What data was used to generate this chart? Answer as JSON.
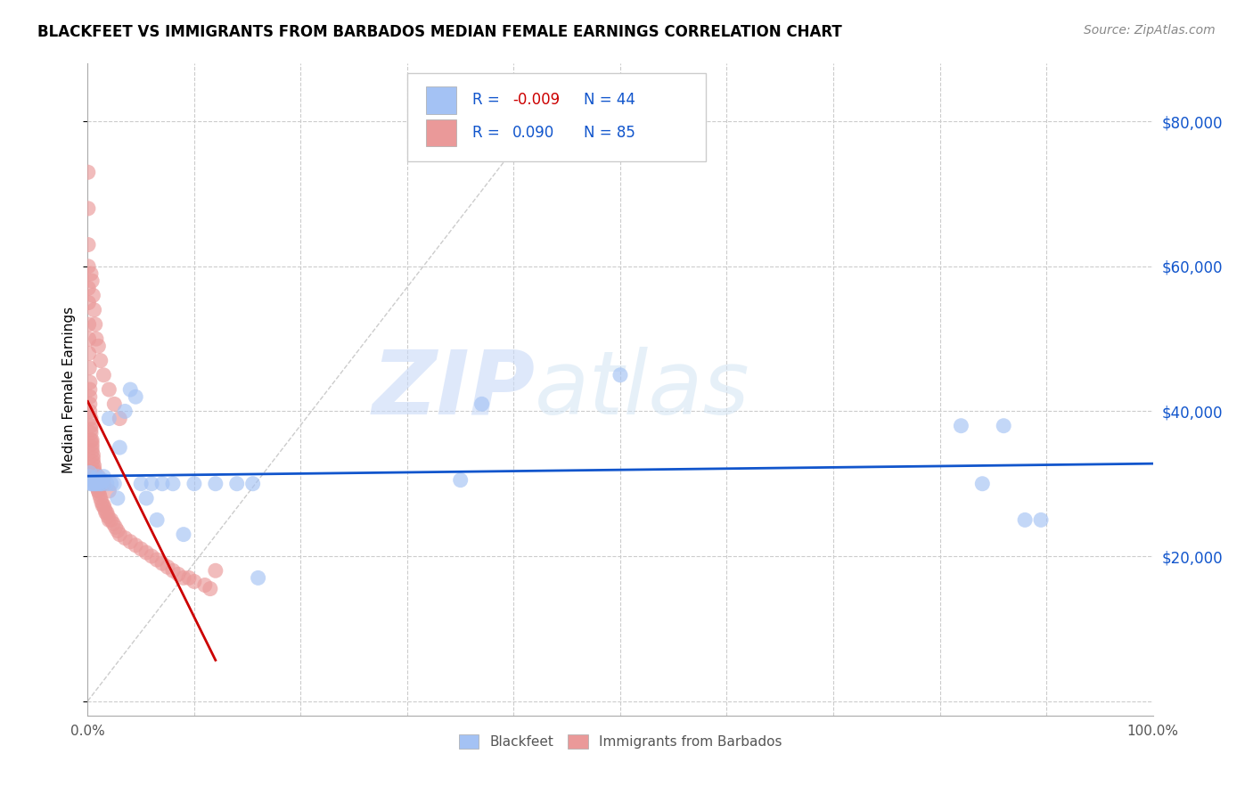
{
  "title": "BLACKFEET VS IMMIGRANTS FROM BARBADOS MEDIAN FEMALE EARNINGS CORRELATION CHART",
  "source": "Source: ZipAtlas.com",
  "ylabel": "Median Female Earnings",
  "watermark": "ZIPatlas",
  "blue_color": "#a4c2f4",
  "pink_color": "#ea9999",
  "blue_line_color": "#1155cc",
  "pink_line_color": "#cc0000",
  "diag_line_color": "#cccccc",
  "ylim": [
    -2000,
    88000
  ],
  "xlim": [
    0,
    1.0
  ],
  "yticks": [
    0,
    20000,
    40000,
    60000,
    80000
  ],
  "ytick_labels": [
    "",
    "$20,000",
    "$40,000",
    "$60,000",
    "$80,000"
  ],
  "blue_scatter_x": [
    0.001,
    0.002,
    0.003,
    0.004,
    0.005,
    0.006,
    0.007,
    0.008,
    0.009,
    0.01,
    0.011,
    0.012,
    0.013,
    0.014,
    0.015,
    0.018,
    0.02,
    0.022,
    0.025,
    0.028,
    0.03,
    0.035,
    0.04,
    0.045,
    0.05,
    0.055,
    0.06,
    0.065,
    0.07,
    0.08,
    0.09,
    0.1,
    0.12,
    0.14,
    0.155,
    0.16,
    0.35,
    0.37,
    0.5,
    0.82,
    0.84,
    0.86,
    0.88,
    0.895
  ],
  "blue_scatter_y": [
    31000,
    31500,
    30000,
    30000,
    30000,
    30500,
    30000,
    30000,
    31000,
    30000,
    30500,
    30000,
    30000,
    30500,
    31000,
    30000,
    39000,
    30000,
    30000,
    28000,
    35000,
    40000,
    43000,
    42000,
    30000,
    28000,
    30000,
    25000,
    30000,
    30000,
    23000,
    30000,
    30000,
    30000,
    30000,
    17000,
    30500,
    41000,
    45000,
    38000,
    30000,
    38000,
    25000,
    25000
  ],
  "pink_scatter_x": [
    0.0003,
    0.0004,
    0.0005,
    0.0006,
    0.0007,
    0.0008,
    0.001,
    0.001,
    0.001,
    0.0015,
    0.002,
    0.002,
    0.002,
    0.002,
    0.002,
    0.003,
    0.003,
    0.003,
    0.003,
    0.003,
    0.004,
    0.004,
    0.004,
    0.004,
    0.005,
    0.005,
    0.005,
    0.006,
    0.006,
    0.007,
    0.007,
    0.008,
    0.008,
    0.009,
    0.009,
    0.01,
    0.01,
    0.011,
    0.012,
    0.013,
    0.014,
    0.015,
    0.016,
    0.017,
    0.018,
    0.019,
    0.02,
    0.022,
    0.024,
    0.026,
    0.028,
    0.03,
    0.035,
    0.04,
    0.045,
    0.05,
    0.055,
    0.06,
    0.065,
    0.07,
    0.075,
    0.08,
    0.085,
    0.09,
    0.095,
    0.1,
    0.11,
    0.115,
    0.12,
    0.003,
    0.004,
    0.005,
    0.006,
    0.007,
    0.008,
    0.01,
    0.012,
    0.015,
    0.02,
    0.025,
    0.03,
    0.015,
    0.02,
    0.01
  ],
  "pink_scatter_y": [
    73000,
    68000,
    63000,
    60000,
    57000,
    55000,
    52000,
    50000,
    48000,
    46000,
    44000,
    43000,
    42000,
    41000,
    40000,
    39000,
    38000,
    37500,
    37000,
    36000,
    36000,
    35500,
    35000,
    34500,
    34000,
    33500,
    33000,
    32500,
    32000,
    31500,
    31000,
    30500,
    30000,
    30000,
    29500,
    29000,
    29000,
    28500,
    28000,
    27500,
    27000,
    27000,
    26500,
    26000,
    26000,
    25500,
    25000,
    25000,
    24500,
    24000,
    23500,
    23000,
    22500,
    22000,
    21500,
    21000,
    20500,
    20000,
    19500,
    19000,
    18500,
    18000,
    17500,
    17000,
    17000,
    16500,
    16000,
    15500,
    18000,
    59000,
    58000,
    56000,
    54000,
    52000,
    50000,
    49000,
    47000,
    45000,
    43000,
    41000,
    39000,
    30000,
    29000,
    31000
  ]
}
